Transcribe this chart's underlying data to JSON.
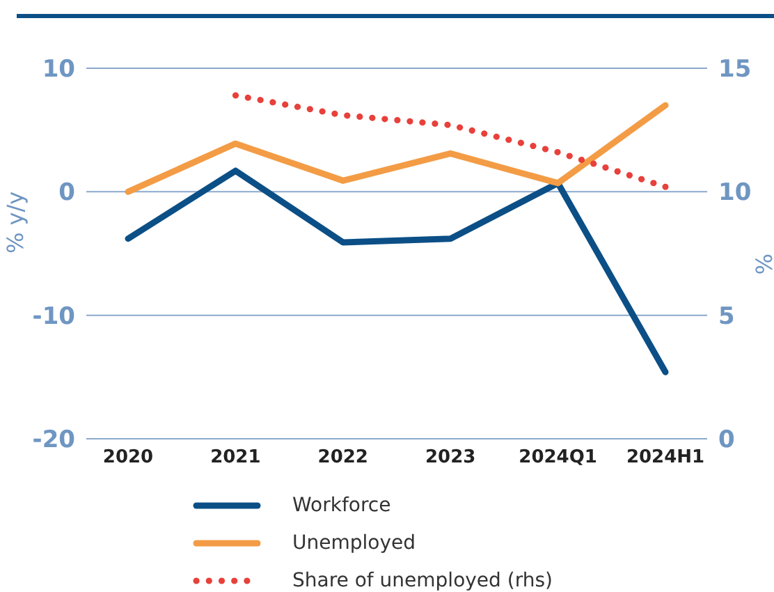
{
  "chart_data": {
    "type": "line",
    "categories": [
      "2020",
      "2021",
      "2022",
      "2023",
      "2024Q1",
      "2024H1"
    ],
    "series": [
      {
        "name": "Workforce",
        "color": "#0b4f86",
        "values": [
          -3.8,
          1.7,
          -4.1,
          -3.8,
          0.7,
          -14.6
        ]
      },
      {
        "name": "Unemployed",
        "color": "#f39c45",
        "values": [
          0,
          3.9,
          0.9,
          3.1,
          0.7,
          7.0
        ]
      },
      {
        "name": "Share of unemployed (rhs)",
        "color": "#e8403a",
        "axis": "y2",
        "line_style": "dotted",
        "values": [
          null,
          13.9,
          13.1,
          12.7,
          11.6,
          10.2
        ]
      }
    ],
    "ylabel": "% y/y",
    "y2label": "%",
    "ylim": [
      -20,
      10
    ],
    "yticks": [
      -20,
      -10,
      0,
      10
    ],
    "y2lim": [
      0,
      15
    ],
    "y2ticks": [
      0,
      5,
      10,
      15
    ],
    "grid": "y",
    "legend": "bottom",
    "line_style": "solid",
    "marker": "none"
  }
}
